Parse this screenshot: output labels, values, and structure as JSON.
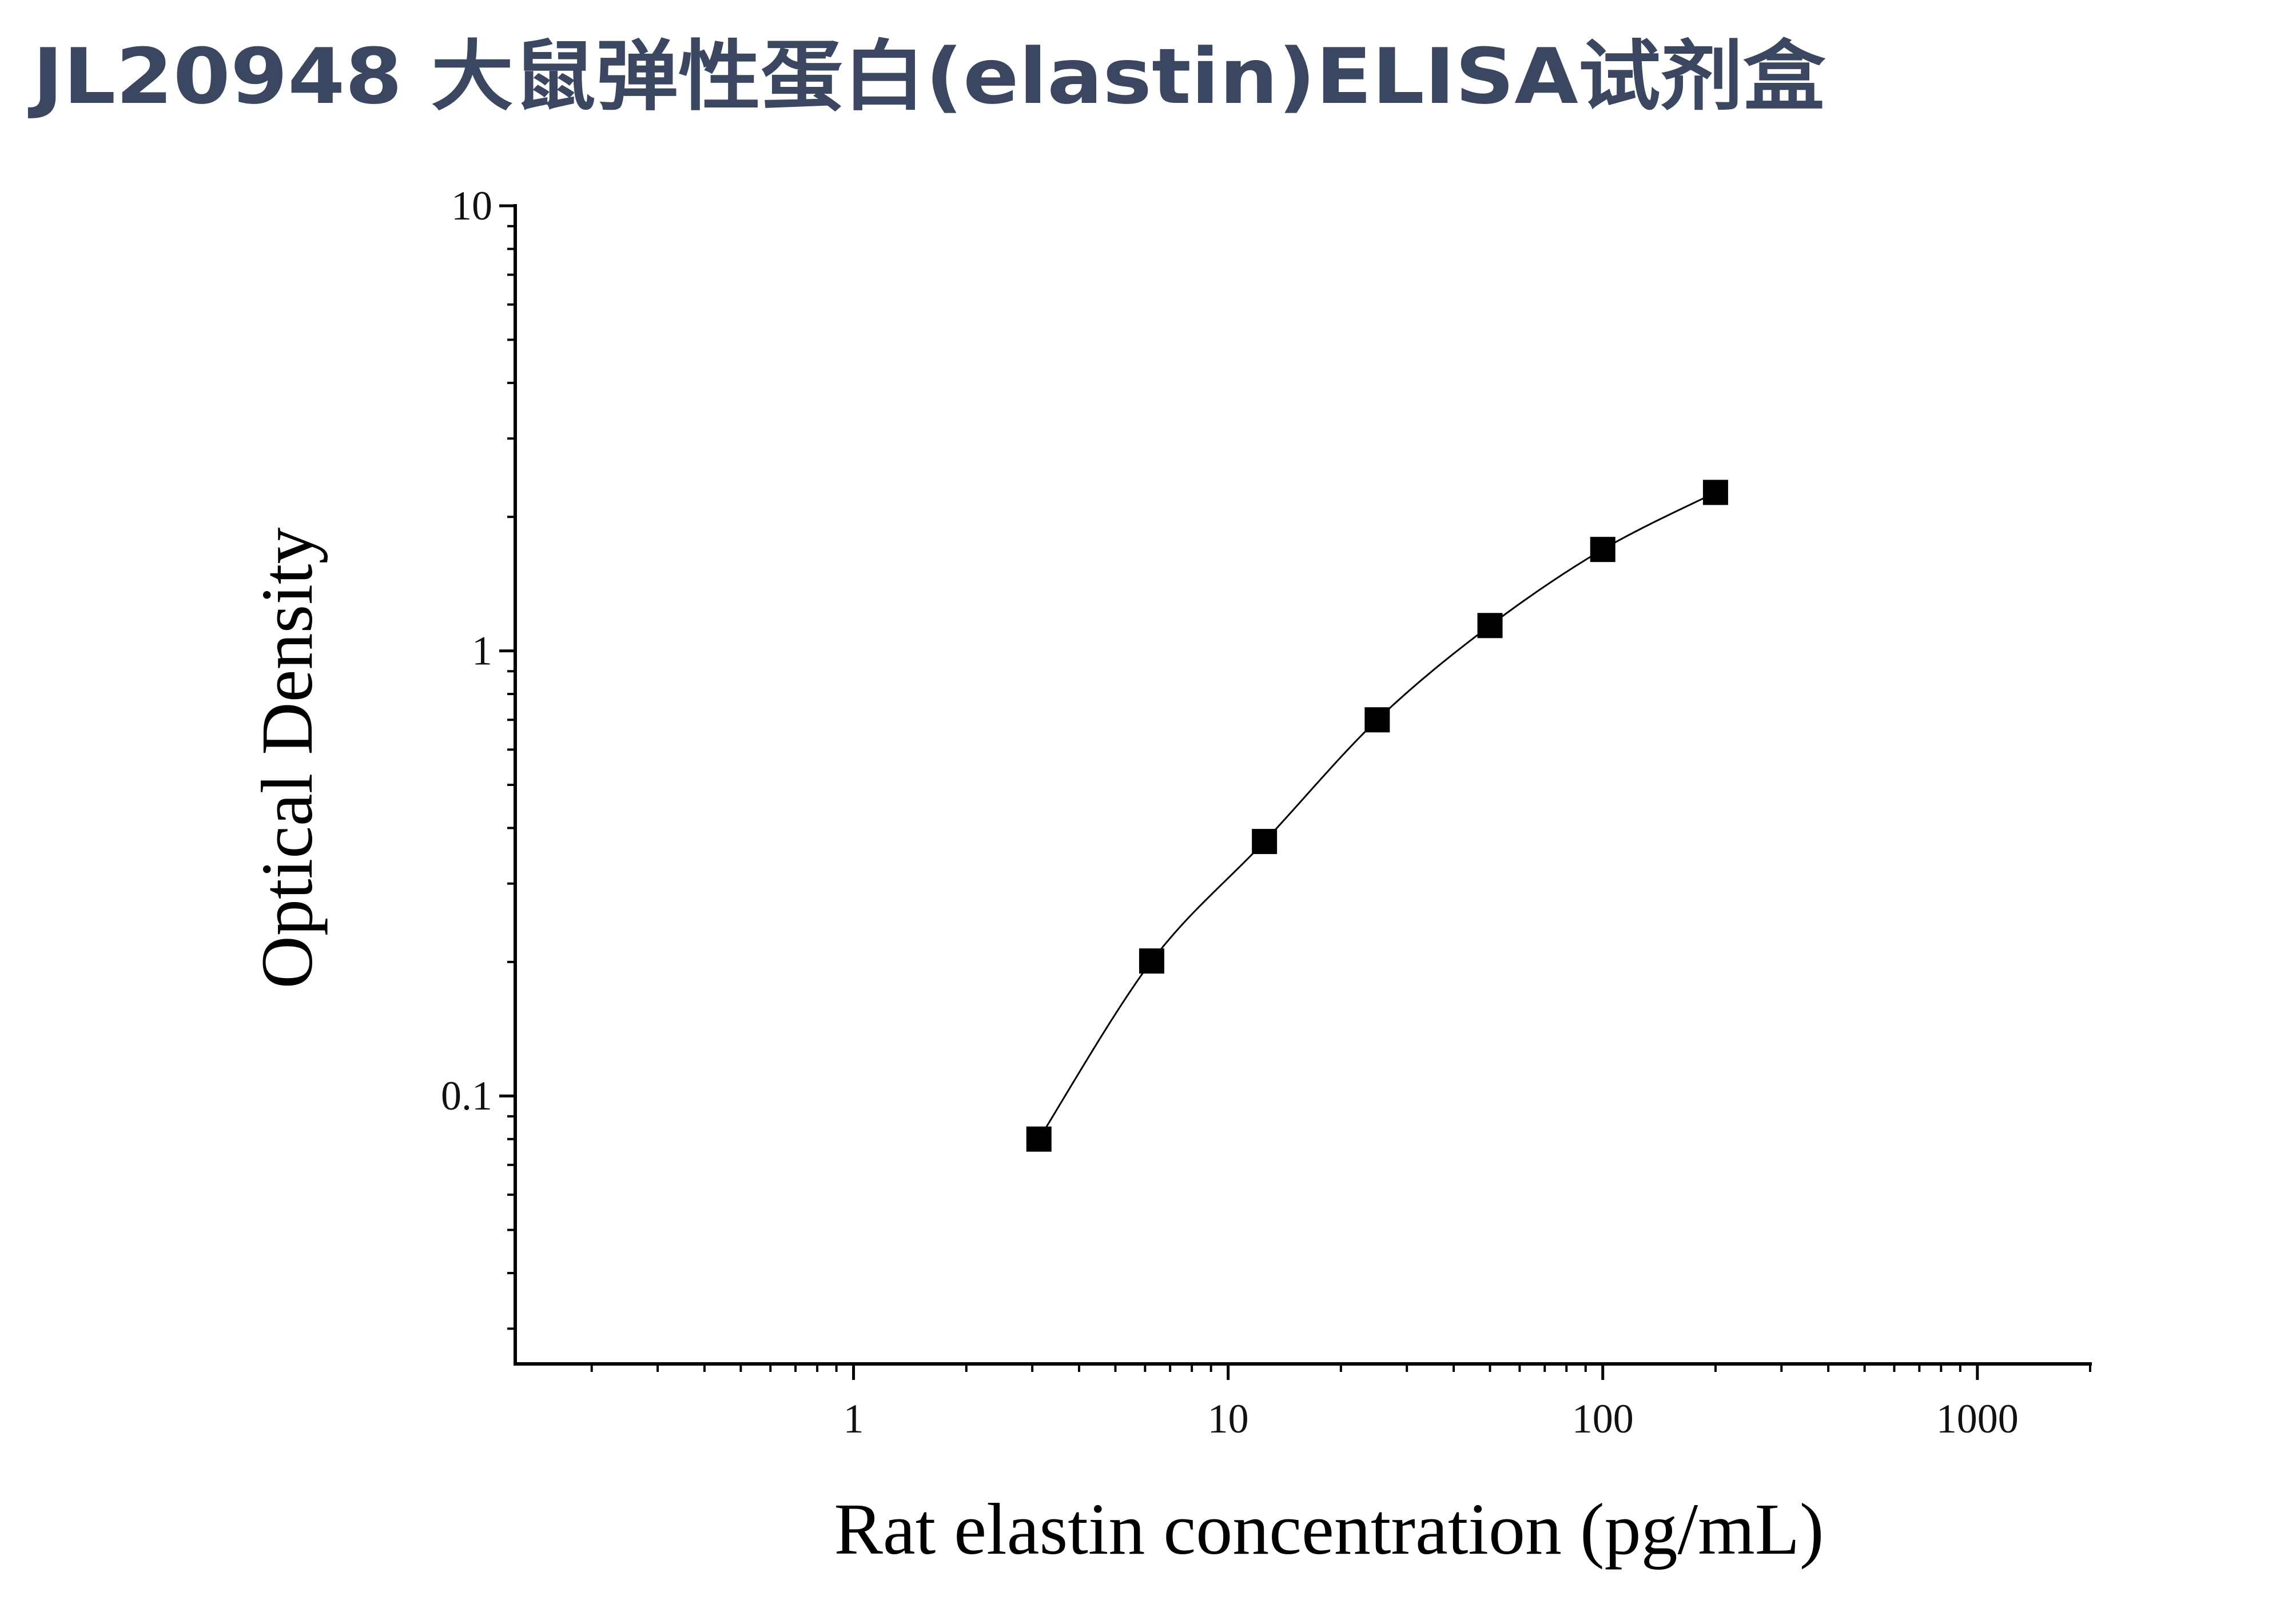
{
  "chart_data": {
    "type": "scatter",
    "title": "JL20948 大鼠弹性蛋白(elastin)ELISA试剂盒",
    "x_label": "Rat elastin concentration (pg/mL)",
    "y_label": "Optical Density",
    "x_log": true,
    "y_log": true,
    "xlim": [
      0.125,
      2000
    ],
    "ylim": [
      0.025,
      10
    ],
    "xticks": [
      1,
      10,
      100,
      1000
    ],
    "yticks": [
      0.1,
      1,
      10
    ],
    "series": [
      {
        "color": "#000000",
        "x": [
          3.125,
          6.25,
          12.5,
          25,
          50,
          100,
          200
        ],
        "values": [
          0.08,
          0.201,
          0.373,
          0.7,
          1.14,
          1.69,
          2.27
        ]
      }
    ]
  }
}
